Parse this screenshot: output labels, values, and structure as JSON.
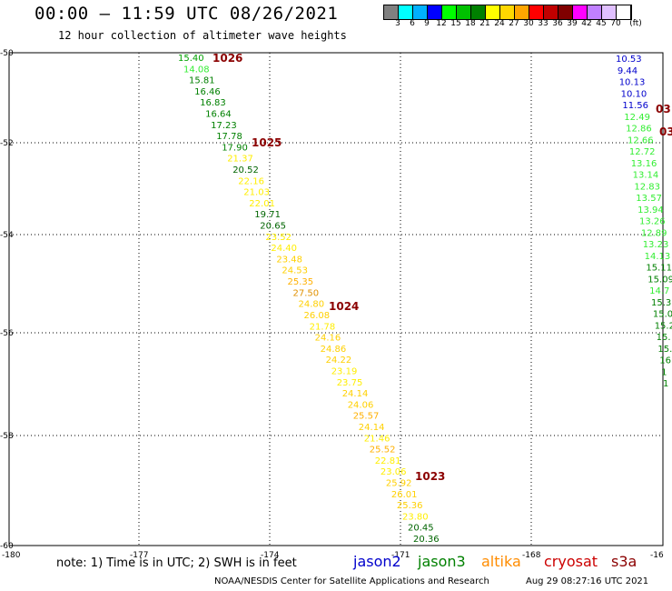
{
  "title": "00:00 – 11:59 UTC 08/26/2021",
  "subtitle": "12 hour collection of altimeter wave heights",
  "colorbar": {
    "colors": [
      "#808080",
      "#00ffff",
      "#00b0ff",
      "#0000ff",
      "#00ff00",
      "#00c000",
      "#008000",
      "#ffff00",
      "#ffd700",
      "#ffa500",
      "#ff0000",
      "#c00000",
      "#800000",
      "#ff00ff",
      "#c080ff",
      "#e0c0ff",
      "#ffffff"
    ],
    "labels": [
      "3",
      "6",
      "9",
      "12",
      "15",
      "18",
      "21",
      "24",
      "27",
      "30",
      "33",
      "36",
      "39",
      "42",
      "45",
      "70",
      "(ft)"
    ]
  },
  "axes": {
    "lon_labels": [
      "-180",
      "-177",
      "-174",
      "-171",
      "-168",
      "-16"
    ],
    "lat_labels": [
      "-50",
      "-52",
      "-54",
      "-56",
      "-58",
      "-60"
    ]
  },
  "main_track": [
    {
      "v": "15.40",
      "c": "#00a000"
    },
    {
      "v": "14.08",
      "c": "#33ee33"
    },
    {
      "v": "15.81",
      "c": "#008000"
    },
    {
      "v": "16.46",
      "c": "#008000"
    },
    {
      "v": "16.83",
      "c": "#008000"
    },
    {
      "v": "16.64",
      "c": "#008000"
    },
    {
      "v": "17.23",
      "c": "#008000"
    },
    {
      "v": "17.78",
      "c": "#008000"
    },
    {
      "v": "17.90",
      "c": "#008000"
    },
    {
      "v": "21.37",
      "c": "#ffee00"
    },
    {
      "v": "20.52",
      "c": "#006400"
    },
    {
      "v": "22.16",
      "c": "#ffee00"
    },
    {
      "v": "21.03",
      "c": "#ffee00"
    },
    {
      "v": "22.01",
      "c": "#ffee00"
    },
    {
      "v": "19.71",
      "c": "#006400"
    },
    {
      "v": "20.65",
      "c": "#006400"
    },
    {
      "v": "23.52",
      "c": "#ffee00"
    },
    {
      "v": "24.40",
      "c": "#ffee00"
    },
    {
      "v": "23.48",
      "c": "#ffd000"
    },
    {
      "v": "24.53",
      "c": "#ffd000"
    },
    {
      "v": "25.35",
      "c": "#ffb000"
    },
    {
      "v": "27.50",
      "c": "#e09000"
    },
    {
      "v": "24.80",
      "c": "#ffd000"
    },
    {
      "v": "26.08",
      "c": "#ffd000"
    },
    {
      "v": "21.78",
      "c": "#ffee00"
    },
    {
      "v": "24.16",
      "c": "#ffd000"
    },
    {
      "v": "24.86",
      "c": "#ffd000"
    },
    {
      "v": "24.22",
      "c": "#ffd000"
    },
    {
      "v": "23.19",
      "c": "#ffee00"
    },
    {
      "v": "23.75",
      "c": "#ffee00"
    },
    {
      "v": "24.14",
      "c": "#ffd000"
    },
    {
      "v": "24.06",
      "c": "#ffd000"
    },
    {
      "v": "25.57",
      "c": "#ffb000"
    },
    {
      "v": "24.14",
      "c": "#ffd000"
    },
    {
      "v": "21.46",
      "c": "#ffee00"
    },
    {
      "v": "25.52",
      "c": "#ffb000"
    },
    {
      "v": "22.81",
      "c": "#ffee00"
    },
    {
      "v": "23.06",
      "c": "#ffee00"
    },
    {
      "v": "25.92",
      "c": "#ffd000"
    },
    {
      "v": "26.01",
      "c": "#ffd000"
    },
    {
      "v": "25.36",
      "c": "#ffd000"
    },
    {
      "v": "23.80",
      "c": "#ffee00"
    },
    {
      "v": "20.45",
      "c": "#006400"
    },
    {
      "v": "20.36",
      "c": "#006400"
    }
  ],
  "right_track": [
    {
      "v": "10.53",
      "c": "#0000cc"
    },
    {
      "v": "9.44",
      "c": "#0000cc"
    },
    {
      "v": "10.13",
      "c": "#0000cc"
    },
    {
      "v": "10.10",
      "c": "#0000cc"
    },
    {
      "v": "11.56",
      "c": "#0000cc"
    },
    {
      "v": "12.49",
      "c": "#33ee33"
    },
    {
      "v": "12.86",
      "c": "#33ee33"
    },
    {
      "v": "12.66",
      "c": "#33ee33"
    },
    {
      "v": "12.72",
      "c": "#33ee33"
    },
    {
      "v": "13.16",
      "c": "#33ee33"
    },
    {
      "v": "13.14",
      "c": "#33ee33"
    },
    {
      "v": "12.83",
      "c": "#33ee33"
    },
    {
      "v": "13.57",
      "c": "#33ee33"
    },
    {
      "v": "13.94",
      "c": "#33ee33"
    },
    {
      "v": "13.26",
      "c": "#33ee33"
    },
    {
      "v": "12.89",
      "c": "#33ee33"
    },
    {
      "v": "13.23",
      "c": "#33ee33"
    },
    {
      "v": "14.13",
      "c": "#33ee33"
    },
    {
      "v": "15.11",
      "c": "#008000"
    },
    {
      "v": "15.09",
      "c": "#008000"
    },
    {
      "v": "14.7",
      "c": "#33ee33"
    },
    {
      "v": "15.3",
      "c": "#008000"
    },
    {
      "v": "15.0",
      "c": "#008000"
    },
    {
      "v": "15.2",
      "c": "#008000"
    },
    {
      "v": "15.",
      "c": "#008000"
    },
    {
      "v": "15.",
      "c": "#008000"
    },
    {
      "v": "16",
      "c": "#008000"
    },
    {
      "v": "1",
      "c": "#008000"
    },
    {
      "v": "1",
      "c": "#008000"
    }
  ],
  "pressure_labels": [
    "1026",
    "1025",
    "1024",
    "1023"
  ],
  "edge_labels": [
    "03",
    "03"
  ],
  "note": "note: 1) Time is in UTC; 2) SWH is in feet",
  "legend": [
    {
      "name": "jason2",
      "color": "#0000cc"
    },
    {
      "name": "jason3",
      "color": "#008000"
    },
    {
      "name": "altika",
      "color": "#ff8c00"
    },
    {
      "name": "cryosat",
      "color": "#cc0000"
    },
    {
      "name": "s3a",
      "color": "#8b0000"
    }
  ],
  "credit": "NOAA/NESDIS Center for Satellite Applications and Research",
  "timestamp": "Aug 29 08:27:16 UTC 2021"
}
